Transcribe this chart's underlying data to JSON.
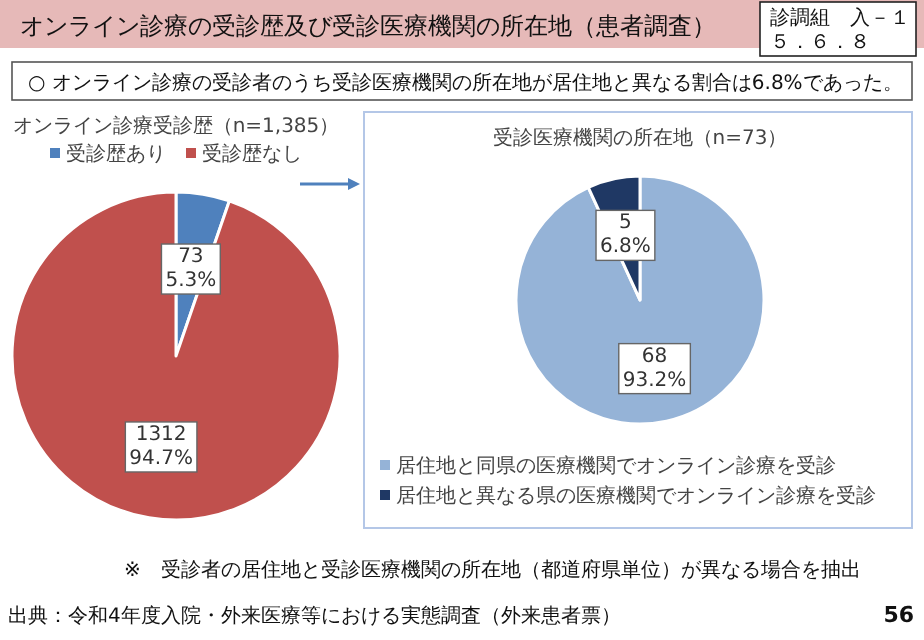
{
  "chart_data": [
    {
      "type": "pie",
      "title": "オンライン診療受診歴（n=1,385）",
      "categories": [
        "受診歴あり",
        "受診歴なし"
      ],
      "values": [
        73,
        1312
      ],
      "colors": [
        "#4f81bd",
        "#c0504d"
      ],
      "value_labels": [
        "73\n5.3%",
        "1312\n94.7%"
      ],
      "legend": "top",
      "annotations": [
        "オンライン診療の受診歴及び受診医療機関の所在地（患者調査）",
        "○ オンライン診療の受診者のうち受診医療機関の所在地が居住地と異なる割合は6.8%であった。",
        "診調組　入－１",
        "５．６．８",
        "※　受診者の居住地と受診医療機関の所在地（都道府県単位）が異なる場合を抽出",
        "出典：令和4年度入院・外来医療等における実態調査（外来患者票）",
        "56"
      ]
    },
    {
      "type": "pie",
      "title": "受診医療機関の所在地（n=73）",
      "categories": [
        "居住地と同県の医療機関でオンライン診療を受診",
        "居住地と異なる県の医療機関でオンライン診療を受診"
      ],
      "values": [
        68,
        5
      ],
      "colors": [
        "#95b3d7",
        "#1f3864"
      ],
      "value_labels": [
        "68\n93.2%",
        "5\n6.8%"
      ],
      "legend": "bottom"
    }
  ]
}
